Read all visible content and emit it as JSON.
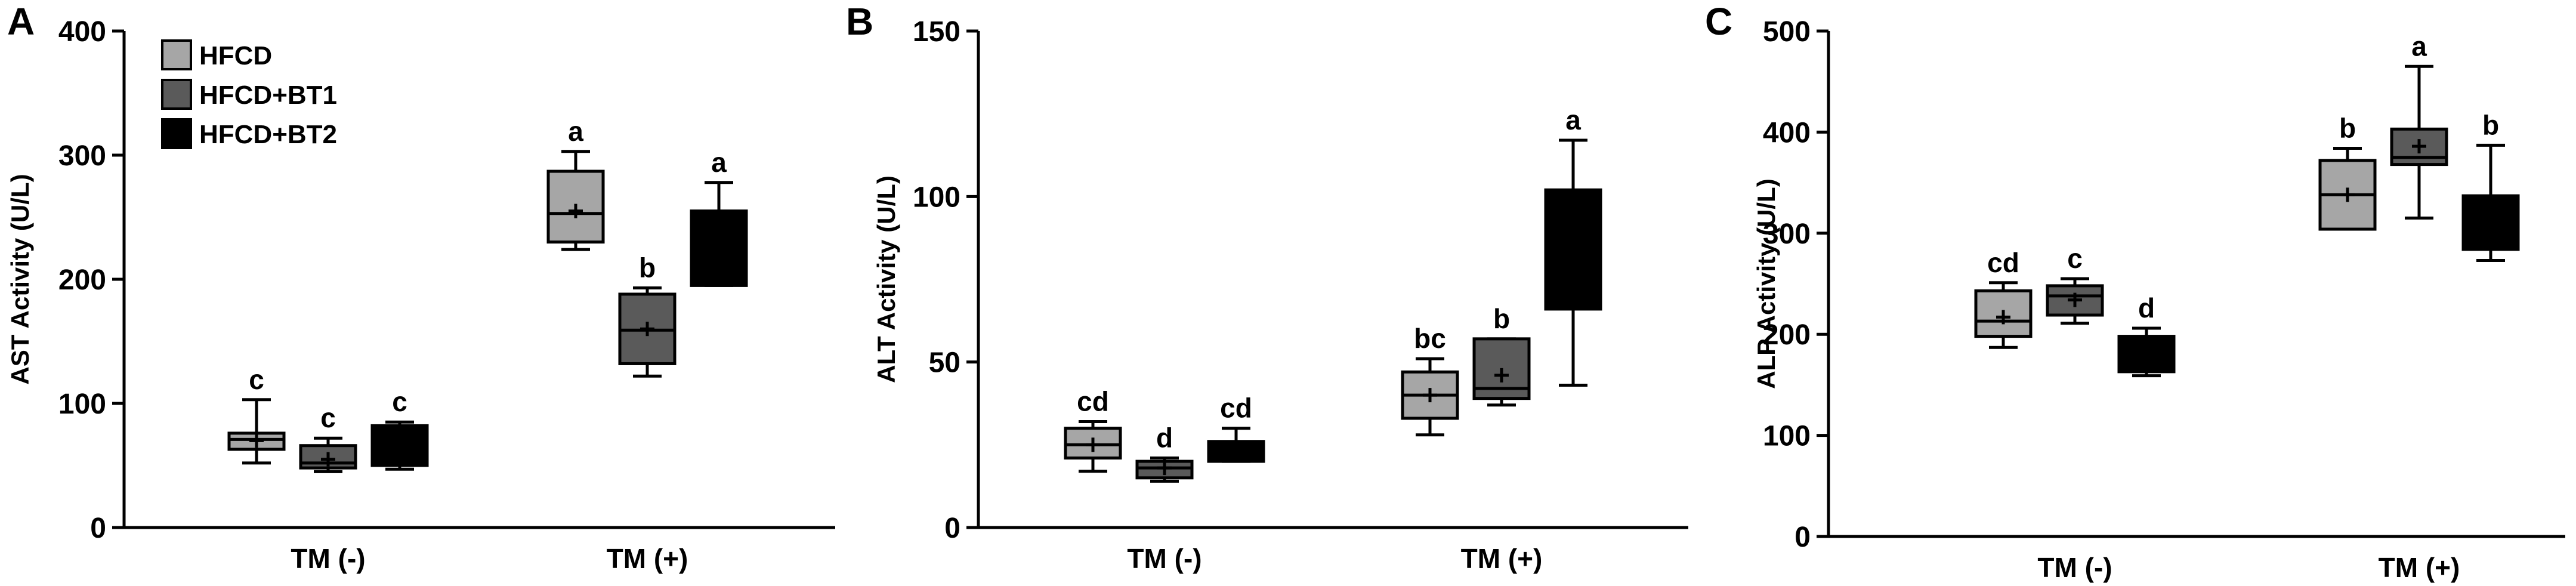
{
  "figure": {
    "legend": {
      "placement": "top-left of panel A",
      "entries": [
        {
          "label": "HFCD",
          "color": "#a6a6a6"
        },
        {
          "label": "HFCD+BT1",
          "color": "#5a5a5a"
        },
        {
          "label": "HFCD+BT2",
          "color": "#000000"
        }
      ]
    }
  },
  "chart_data": [
    {
      "panel": "A",
      "type": "box",
      "ylabel": "AST Activity (U/L)",
      "ylim": [
        0,
        400
      ],
      "yticks": [
        0,
        100,
        200,
        300,
        400
      ],
      "categories": [
        "TM (-)",
        "TM (+)"
      ],
      "series": [
        {
          "name": "HFCD",
          "color": "#a6a6a6",
          "boxes": [
            {
              "min": 52,
              "q1": 63,
              "median": 71,
              "q3": 76,
              "max": 103,
              "mean": 70,
              "label": "c"
            },
            {
              "min": 224,
              "q1": 230,
              "median": 253,
              "q3": 287,
              "max": 303,
              "mean": 255,
              "label": "a"
            }
          ]
        },
        {
          "name": "HFCD+BT1",
          "color": "#5a5a5a",
          "boxes": [
            {
              "min": 45,
              "q1": 48,
              "median": 52,
              "q3": 66,
              "max": 72,
              "mean": 55,
              "label": "c"
            },
            {
              "min": 122,
              "q1": 132,
              "median": 159,
              "q3": 188,
              "max": 193,
              "mean": 160,
              "label": "b"
            }
          ]
        },
        {
          "name": "HFCD+BT2",
          "color": "#000000",
          "boxes": [
            {
              "min": 47,
              "q1": 50,
              "median": 65,
              "q3": 82,
              "max": 85,
              "mean": 66,
              "label": "c"
            },
            {
              "min": 195,
              "q1": 195,
              "median": 225,
              "q3": 255,
              "max": 278,
              "mean": 224,
              "label": "a"
            }
          ]
        }
      ]
    },
    {
      "panel": "B",
      "type": "box",
      "ylabel": "ALT Activity (U/L)",
      "ylim": [
        0,
        150
      ],
      "yticks": [
        0,
        50,
        100,
        150
      ],
      "categories": [
        "TM (-)",
        "TM (+)"
      ],
      "series": [
        {
          "name": "HFCD",
          "color": "#a6a6a6",
          "boxes": [
            {
              "min": 17,
              "q1": 21,
              "median": 25,
              "q3": 30,
              "max": 32,
              "mean": 25,
              "label": "cd"
            },
            {
              "min": 28,
              "q1": 33,
              "median": 40,
              "q3": 47,
              "max": 51,
              "mean": 40,
              "label": "bc"
            }
          ]
        },
        {
          "name": "HFCD+BT1",
          "color": "#5a5a5a",
          "boxes": [
            {
              "min": 14,
              "q1": 15,
              "median": 18,
              "q3": 20,
              "max": 21,
              "mean": 18,
              "label": "d"
            },
            {
              "min": 37,
              "q1": 39,
              "median": 42,
              "q3": 57,
              "max": 57,
              "mean": 46,
              "label": "b"
            }
          ]
        },
        {
          "name": "HFCD+BT2",
          "color": "#000000",
          "boxes": [
            {
              "min": 20,
              "q1": 20,
              "median": 22,
              "q3": 26,
              "max": 30,
              "mean": 23,
              "label": "cd"
            },
            {
              "min": 43,
              "q1": 66,
              "median": 80,
              "q3": 102,
              "max": 117,
              "mean": 82,
              "label": "a"
            }
          ]
        }
      ]
    },
    {
      "panel": "C",
      "type": "box",
      "ylabel": "ALP Activity (U/L)",
      "ylim": [
        0,
        500
      ],
      "yticks": [
        0,
        100,
        200,
        300,
        400,
        500
      ],
      "categories": [
        "TM (-)",
        "TM (+)"
      ],
      "series": [
        {
          "name": "HFCD",
          "color": "#a6a6a6",
          "boxes": [
            {
              "min": 187,
              "q1": 198,
              "median": 213,
              "q3": 243,
              "max": 251,
              "mean": 217,
              "label": "cd"
            },
            {
              "min": 304,
              "q1": 304,
              "median": 338,
              "q3": 372,
              "max": 384,
              "mean": 338,
              "label": "b"
            }
          ]
        },
        {
          "name": "HFCD+BT1",
          "color": "#5a5a5a",
          "boxes": [
            {
              "min": 211,
              "q1": 219,
              "median": 238,
              "q3": 248,
              "max": 255,
              "mean": 234,
              "label": "c"
            },
            {
              "min": 315,
              "q1": 368,
              "median": 375,
              "q3": 403,
              "max": 465,
              "mean": 386,
              "label": "a"
            }
          ]
        },
        {
          "name": "HFCD+BT2",
          "color": "#000000",
          "boxes": [
            {
              "min": 159,
              "q1": 163,
              "median": 180,
              "q3": 198,
              "max": 206,
              "mean": 183,
              "label": "d"
            },
            {
              "min": 273,
              "q1": 284,
              "median": 309,
              "q3": 337,
              "max": 387,
              "mean": 315,
              "label": "b"
            }
          ]
        }
      ]
    }
  ]
}
